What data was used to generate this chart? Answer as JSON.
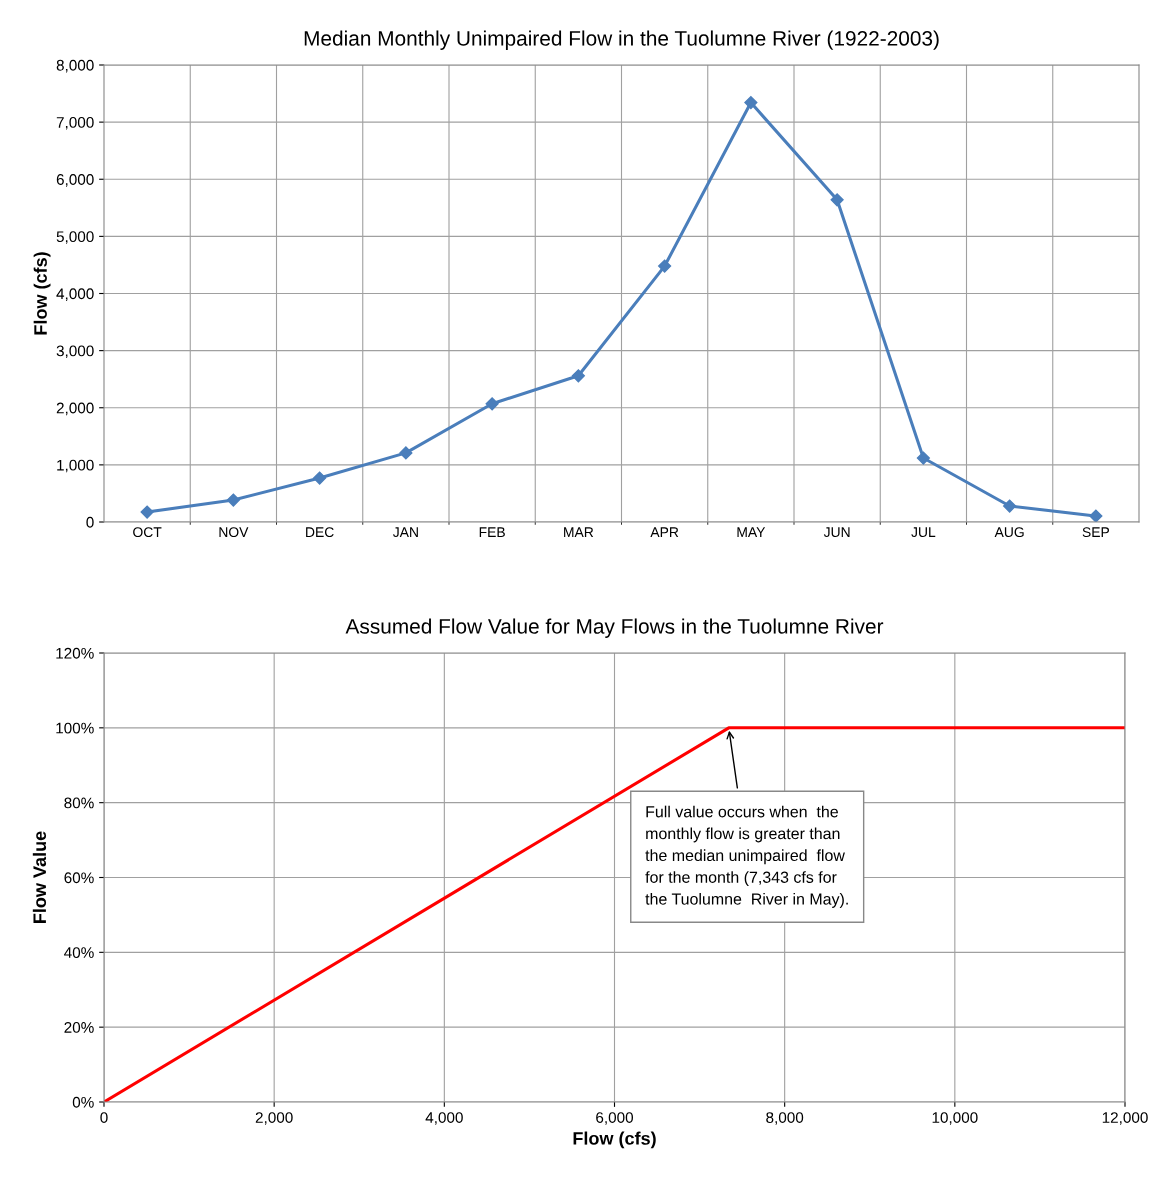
{
  "chart_data": [
    {
      "type": "line",
      "title": "Median Monthly Unimpaired Flow in the Tuolumne River (1922-2003)",
      "ylabel": "Flow (cfs)",
      "categories": [
        "OCT",
        "NOV",
        "DEC",
        "JAN",
        "FEB",
        "MAR",
        "APR",
        "MAY",
        "JUN",
        "JUL",
        "AUG",
        "SEP"
      ],
      "series": [
        {
          "color": "#4a7ebb",
          "values": [
            175,
            385,
            770,
            1210,
            2070,
            2560,
            4480,
            7343,
            5640,
            1120,
            280,
            105
          ]
        }
      ],
      "ylim": [
        0,
        8000
      ],
      "yticks": [
        {
          "value": 0,
          "label": "0"
        },
        {
          "value": 1000,
          "label": "1,000"
        },
        {
          "value": 2000,
          "label": "2,000"
        },
        {
          "value": 3000,
          "label": "3,000"
        },
        {
          "value": 4000,
          "label": "4,000"
        },
        {
          "value": 5000,
          "label": "5,000"
        },
        {
          "value": 6000,
          "label": "6,000"
        },
        {
          "value": 7000,
          "label": "7,000"
        },
        {
          "value": 8000,
          "label": "8,000"
        }
      ],
      "grid": true,
      "marker": "diamond",
      "line_style": "solid"
    },
    {
      "type": "line",
      "title": "Assumed Flow Value for May Flows in the Tuolumne River",
      "xlabel": "Flow (cfs)",
      "ylabel": "Flow Value",
      "x": [
        0,
        7343,
        12000
      ],
      "series": [
        {
          "color": "#ff0000",
          "values": [
            0,
            100,
            100
          ]
        }
      ],
      "xlim": [
        0,
        12000
      ],
      "xticks": [
        {
          "value": 0,
          "label": "0"
        },
        {
          "value": 2000,
          "label": "2,000"
        },
        {
          "value": 4000,
          "label": "4,000"
        },
        {
          "value": 6000,
          "label": "6,000"
        },
        {
          "value": 8000,
          "label": "8,000"
        },
        {
          "value": 10000,
          "label": "10,000"
        },
        {
          "value": 12000,
          "label": "12,000"
        }
      ],
      "ylim": [
        0,
        120
      ],
      "yticks": [
        {
          "value": 0,
          "label": "0%"
        },
        {
          "value": 20,
          "label": "20%"
        },
        {
          "value": 40,
          "label": "40%"
        },
        {
          "value": 60,
          "label": "60%"
        },
        {
          "value": 80,
          "label": "80%"
        },
        {
          "value": 100,
          "label": "100%"
        },
        {
          "value": 120,
          "label": "120%"
        }
      ],
      "grid": true,
      "marker": "none",
      "line_style": "solid",
      "annotations": [
        {
          "text": "Full value occurs when  the\nmonthly flow is greater than\nthe median unimpaired  flow\nfor the month (7,343 cfs for\nthe Tuolumne  River in May).",
          "x": 7343,
          "y": 100
        }
      ]
    }
  ]
}
